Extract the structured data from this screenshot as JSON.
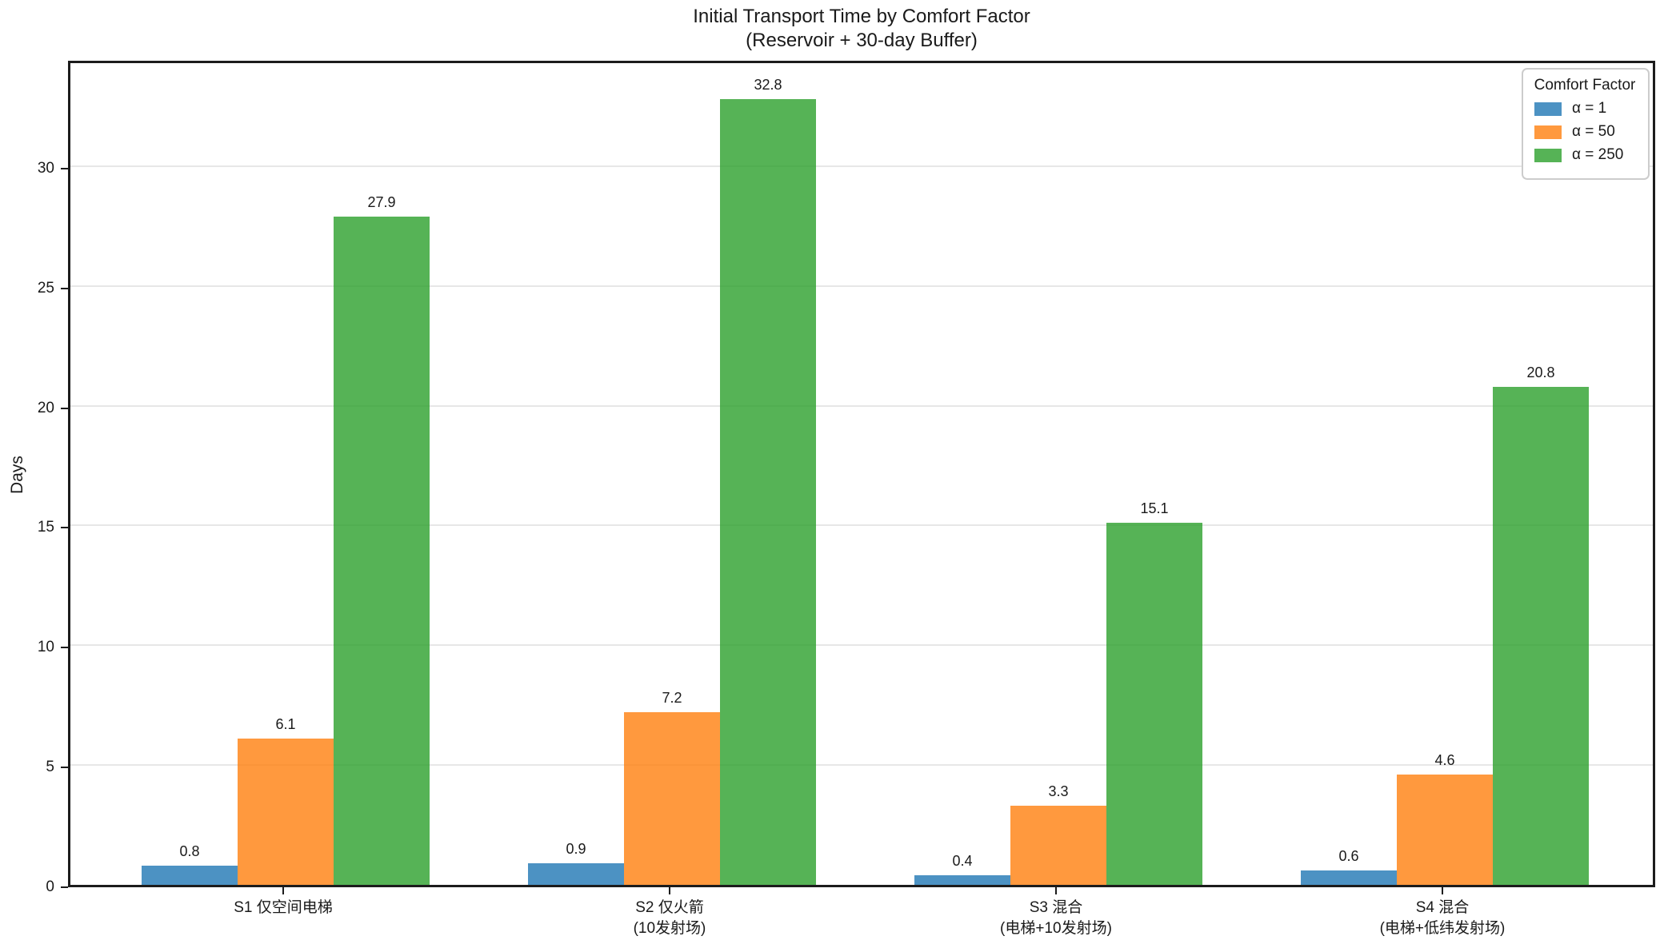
{
  "chart_data": {
    "type": "bar",
    "title": "Initial Transport Time by Comfort Factor",
    "subtitle": "(Reservoir + 30-day Buffer)",
    "ylabel": "Days",
    "ylim": [
      0,
      34.5
    ],
    "yticks": [
      0,
      5,
      10,
      15,
      20,
      25,
      30
    ],
    "grid": "horizontal",
    "bar_alpha": 0.8,
    "value_labels": true,
    "legend": {
      "title": "Comfort Factor",
      "position": "upper right"
    },
    "categories": [
      {
        "label_lines": [
          "S1 仅空间电梯"
        ]
      },
      {
        "label_lines": [
          "S2 仅火箭",
          "(10发射场)"
        ]
      },
      {
        "label_lines": [
          "S3 混合",
          "(电梯+10发射场)"
        ]
      },
      {
        "label_lines": [
          "S4 混合",
          "(电梯+低纬发射场)"
        ]
      }
    ],
    "series": [
      {
        "name": "α = 1",
        "color": "#1f77b4",
        "values": [
          0.8,
          0.9,
          0.4,
          0.6
        ]
      },
      {
        "name": "α = 50",
        "color": "#ff7f0e",
        "values": [
          6.1,
          7.2,
          3.3,
          4.6
        ]
      },
      {
        "name": "α = 250",
        "color": "#2ca02c",
        "values": [
          27.9,
          32.8,
          15.1,
          20.8
        ]
      }
    ]
  }
}
